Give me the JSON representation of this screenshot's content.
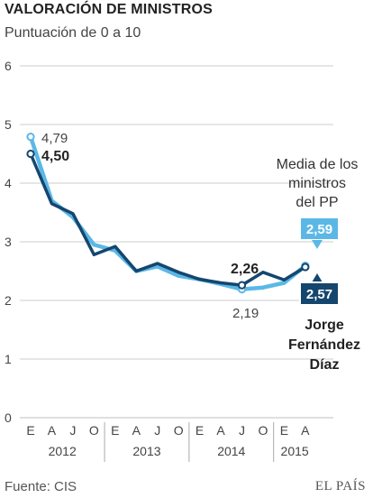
{
  "header": {
    "title": "VALORACIÓN DE MINISTROS",
    "subtitle": "Puntuación de 0 a 10"
  },
  "footer": {
    "source": "Fuente: CIS",
    "brand": "EL PAÍS"
  },
  "colors": {
    "light_series": "#5bb8e6",
    "dark_series": "#15466e",
    "grid": "#cccccc",
    "axis_text": "#444444",
    "label_bg_light": "#5bb8e6",
    "label_bg_dark": "#15466e"
  },
  "chart_data": {
    "type": "line",
    "title": "VALORACIÓN DE MINISTROS",
    "subtitle": "Puntuación de 0 a 10",
    "ylim": [
      0,
      6
    ],
    "y_ticks": [
      "0",
      "1",
      "2",
      "3",
      "4",
      "5",
      "6"
    ],
    "x_month_labels": [
      "E",
      "A",
      "J",
      "O",
      "E",
      "A",
      "J",
      "O",
      "E",
      "A",
      "J",
      "O",
      "E",
      "A"
    ],
    "x_year_labels": [
      "2012",
      "2013",
      "2014",
      "2015"
    ],
    "grid": true,
    "series": [
      {
        "key": "media",
        "name": "Media de los ministros del PP",
        "color": "#5bb8e6",
        "x_index": [
          0,
          1,
          2,
          3,
          4,
          5,
          6,
          7,
          8,
          9,
          10,
          11,
          12,
          13
        ],
        "values": [
          4.79,
          3.7,
          3.42,
          2.95,
          2.85,
          2.5,
          2.58,
          2.42,
          2.36,
          2.28,
          2.19,
          2.22,
          2.3,
          2.59
        ]
      },
      {
        "key": "fernandez",
        "name": "Jorge Fernández Díaz",
        "color": "#15466e",
        "x_index": [
          0,
          1,
          2,
          3,
          4,
          5,
          6,
          7,
          8,
          9,
          10,
          11,
          12,
          13
        ],
        "values": [
          4.5,
          3.65,
          3.48,
          2.78,
          2.92,
          2.5,
          2.63,
          2.48,
          2.36,
          2.3,
          2.26,
          2.48,
          2.35,
          2.57
        ]
      }
    ],
    "annotations": {
      "media_start": "4,79",
      "fernandez_start": "4,50",
      "fernandez_low": "2,26",
      "media_low": "2,19",
      "media_legend": [
        "Media de los",
        "ministros",
        "del PP"
      ],
      "media_end": "2,59",
      "fernandez_end": "2,57",
      "fernandez_legend": [
        "Jorge",
        "Fernández",
        "Díaz"
      ]
    }
  }
}
